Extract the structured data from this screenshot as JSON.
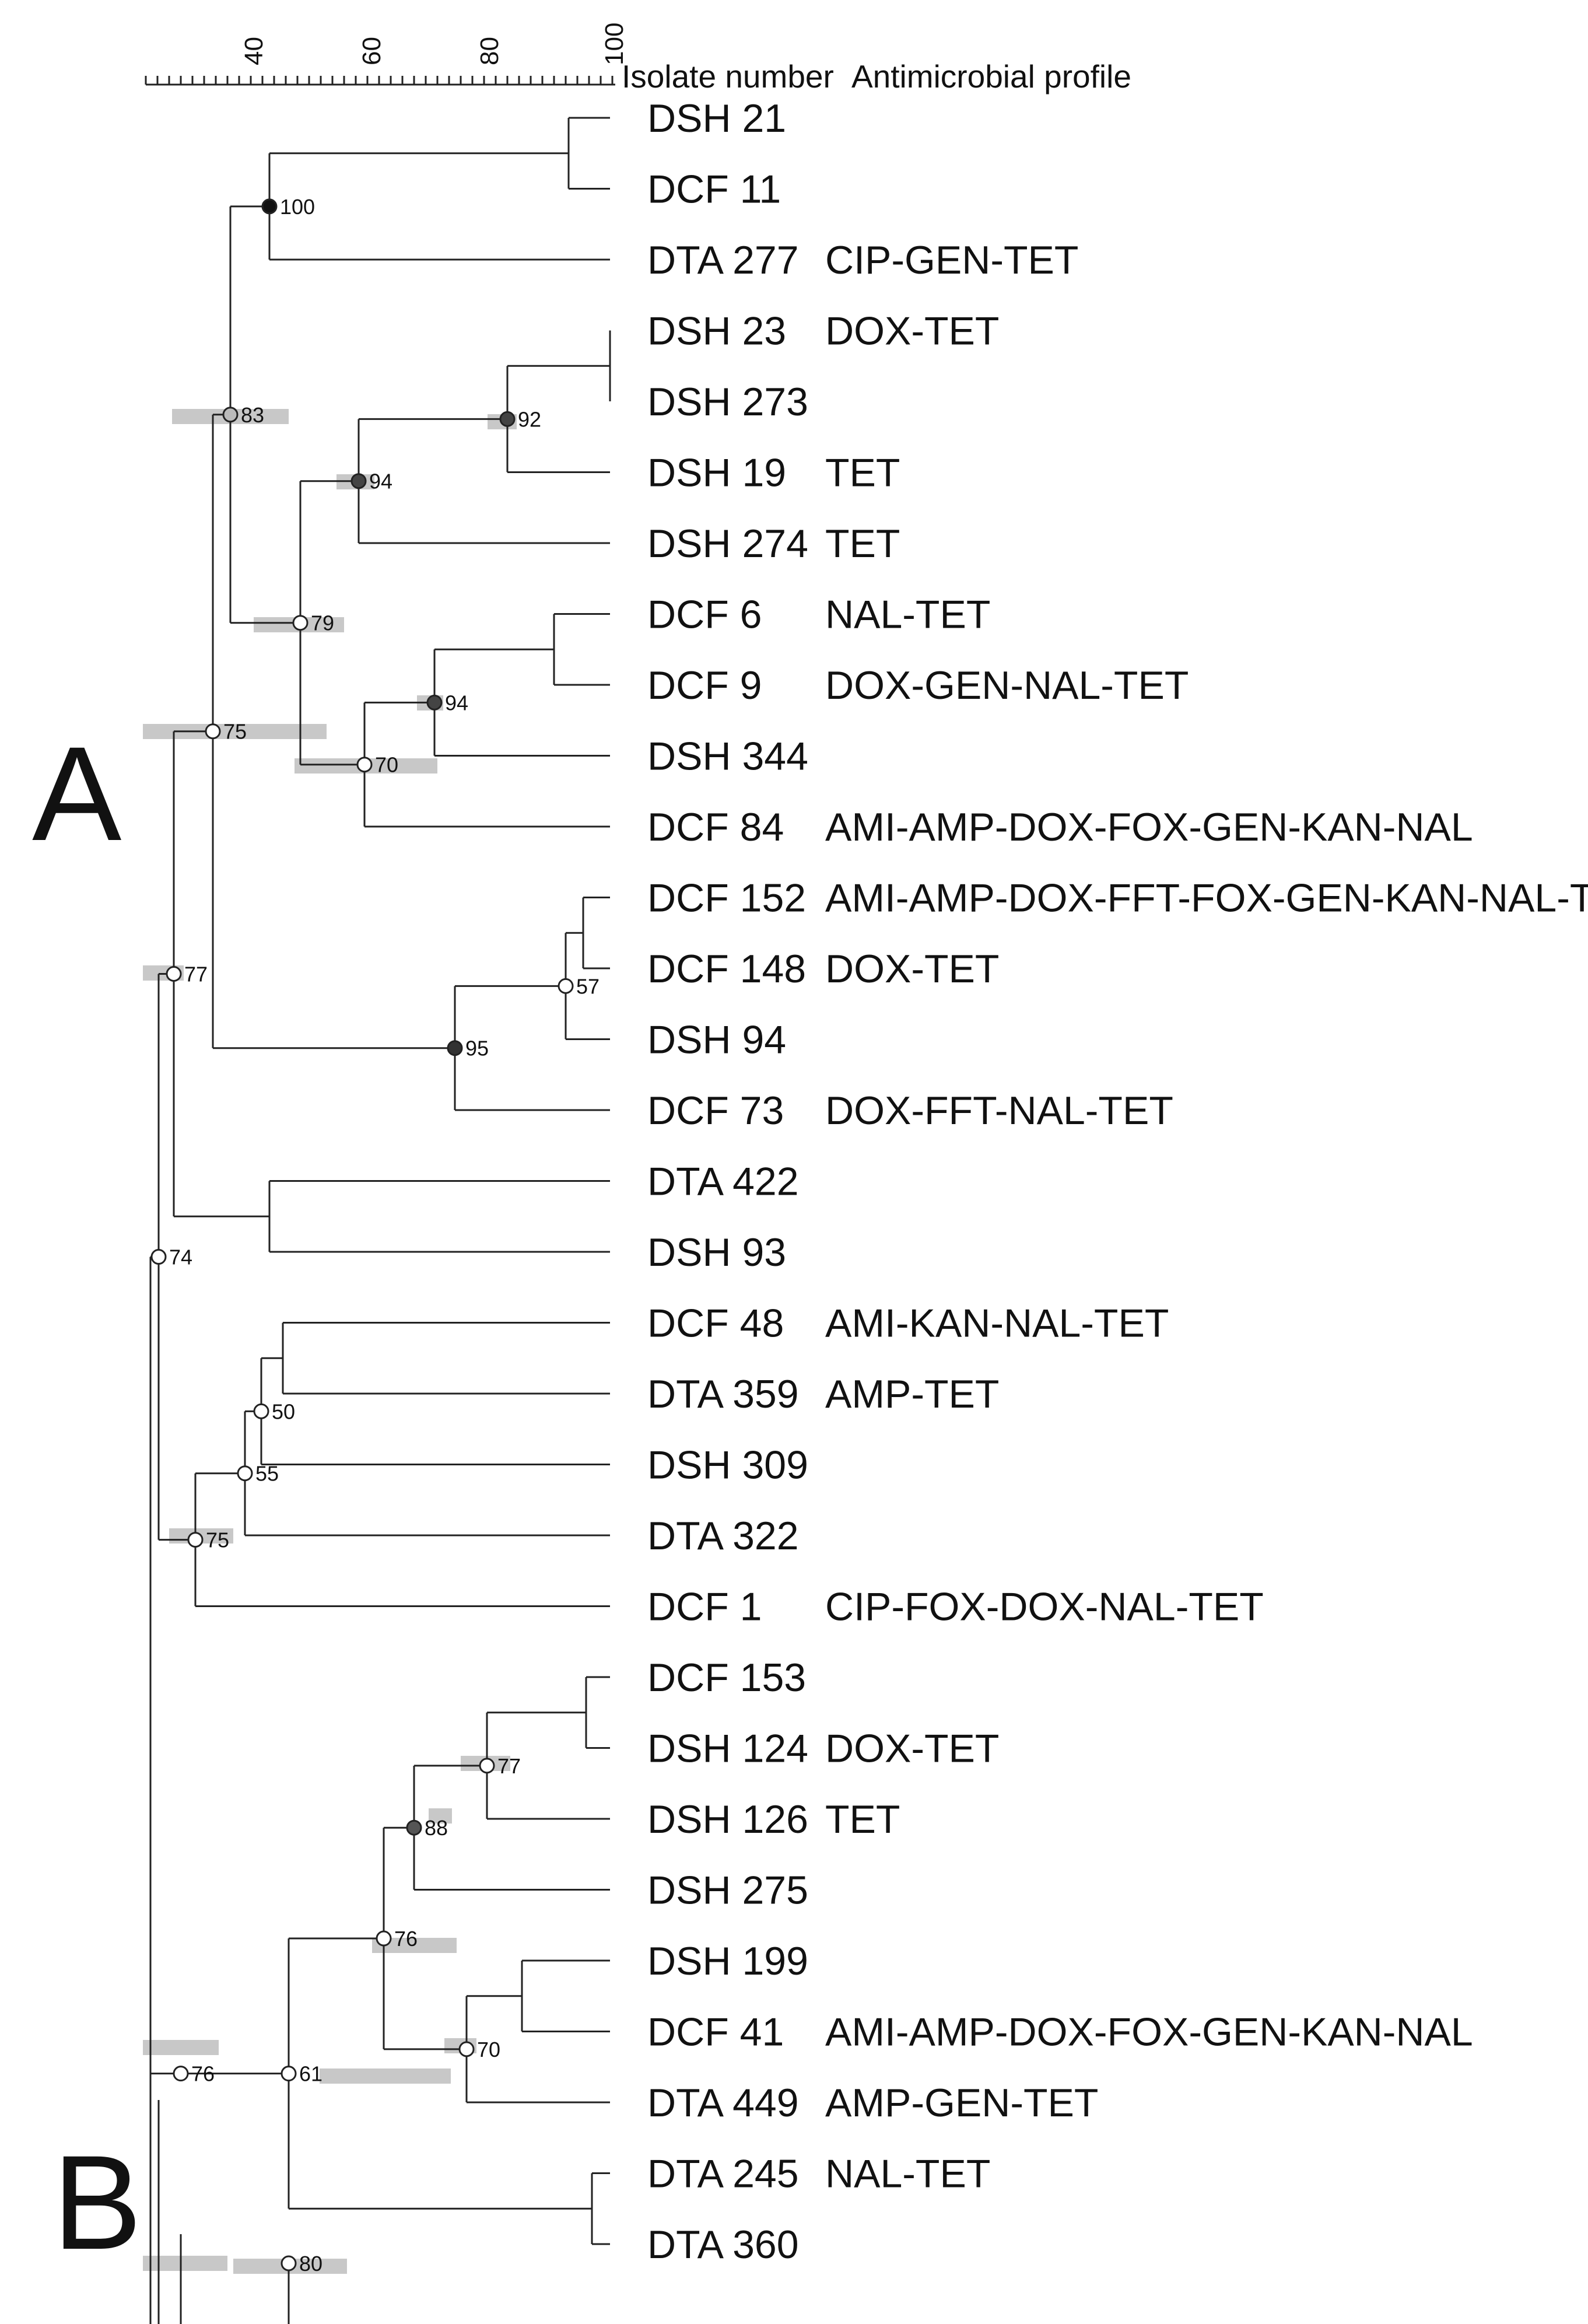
{
  "header": {
    "isolate_col": "Isolate number",
    "profile_col": "Antimicrobial profile"
  },
  "axis": {
    "ticks": [
      "40",
      "60",
      "80",
      "100"
    ]
  },
  "clusters": [
    "A",
    "B"
  ],
  "leaves": [
    {
      "isolate": "DSH 21",
      "profile": ""
    },
    {
      "isolate": "DCF 11",
      "profile": ""
    },
    {
      "isolate": "DTA 277",
      "profile": "CIP-GEN-TET"
    },
    {
      "isolate": "DSH 23",
      "profile": "DOX-TET"
    },
    {
      "isolate": "DSH 273",
      "profile": ""
    },
    {
      "isolate": "DSH 19",
      "profile": "TET"
    },
    {
      "isolate": "DSH 274",
      "profile": "TET"
    },
    {
      "isolate": "DCF 6",
      "profile": "NAL-TET"
    },
    {
      "isolate": "DCF 9",
      "profile": "DOX-GEN-NAL-TET"
    },
    {
      "isolate": "DSH 344",
      "profile": ""
    },
    {
      "isolate": "DCF 84",
      "profile": "AMI-AMP-DOX-FOX-GEN-KAN-NAL"
    },
    {
      "isolate": "DCF 152",
      "profile": "AMI-AMP-DOX-FFT-FOX-GEN-KAN-NAL-TE"
    },
    {
      "isolate": "DCF 148",
      "profile": "DOX-TET"
    },
    {
      "isolate": "DSH 94",
      "profile": ""
    },
    {
      "isolate": "DCF 73",
      "profile": "DOX-FFT-NAL-TET"
    },
    {
      "isolate": "DTA 422",
      "profile": ""
    },
    {
      "isolate": "DSH 93",
      "profile": ""
    },
    {
      "isolate": "DCF 48",
      "profile": "AMI-KAN-NAL-TET"
    },
    {
      "isolate": "DTA 359",
      "profile": "AMP-TET"
    },
    {
      "isolate": "DSH 309",
      "profile": ""
    },
    {
      "isolate": "DTA 322",
      "profile": ""
    },
    {
      "isolate": "DCF 1",
      "profile": "CIP-FOX-DOX-NAL-TET"
    },
    {
      "isolate": "DCF 153",
      "profile": ""
    },
    {
      "isolate": "DSH 124",
      "profile": "DOX-TET"
    },
    {
      "isolate": "DSH 126",
      "profile": "TET"
    },
    {
      "isolate": "DSH 275",
      "profile": ""
    },
    {
      "isolate": "DSH 199",
      "profile": ""
    },
    {
      "isolate": "DCF 41",
      "profile": "AMI-AMP-DOX-FOX-GEN-KAN-NAL"
    },
    {
      "isolate": "DTA 449",
      "profile": "AMP-GEN-TET"
    },
    {
      "isolate": "DTA 245",
      "profile": "NAL-TET"
    },
    {
      "isolate": "DTA 360",
      "profile": ""
    }
  ],
  "bootstrap_values": [
    "100",
    "83",
    "92",
    "94",
    "79",
    "75",
    "94",
    "70",
    "77",
    "57",
    "95",
    "50",
    "55",
    "75",
    "77",
    "88",
    "76",
    "74",
    "70",
    "61",
    "76",
    "80"
  ]
}
